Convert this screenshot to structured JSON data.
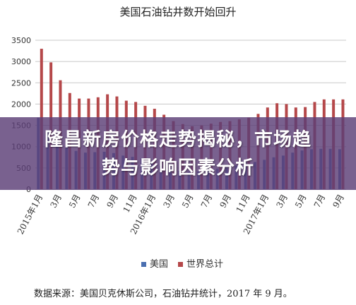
{
  "title": "美国石油钻井数开始回升",
  "banner": {
    "line1": "隆昌新房价格走势揭秘，市场趋",
    "line2": "势与影响因素分析"
  },
  "source": "数据来源：美国贝克休斯公司，石油钻井统计，2017 年 9 月。",
  "chart_data": {
    "type": "bar",
    "title": "美国石油钻井数开始回升",
    "xlabel": "",
    "ylabel": "",
    "ylim": [
      0,
      3500
    ],
    "yticks": [
      0,
      500,
      1000,
      1500,
      2000,
      2500,
      3000,
      3500
    ],
    "grid": true,
    "legend": "bottom",
    "tick_labels": [
      "2015年1月",
      "3月",
      "5月",
      "7月",
      "9月",
      "11月",
      "2016年1月",
      "3月",
      "5月",
      "7月",
      "9月",
      "11月",
      "2017年1月",
      "3月",
      "5月",
      "7月",
      "9月"
    ],
    "months": [
      "2015-01",
      "2015-02",
      "2015-03",
      "2015-04",
      "2015-05",
      "2015-06",
      "2015-07",
      "2015-08",
      "2015-09",
      "2015-10",
      "2015-11",
      "2015-12",
      "2016-01",
      "2016-02",
      "2016-03",
      "2016-04",
      "2016-05",
      "2016-06",
      "2016-07",
      "2016-08",
      "2016-09",
      "2016-10",
      "2016-11",
      "2016-12",
      "2017-01",
      "2017-02",
      "2017-03",
      "2017-04",
      "2017-05",
      "2017-06",
      "2017-07",
      "2017-08",
      "2017-09"
    ],
    "series": [
      {
        "name": "美国",
        "color": "#4a6fb0",
        "values": [
          1680,
          1350,
          1110,
          990,
          900,
          860,
          870,
          880,
          850,
          790,
          760,
          720,
          650,
          550,
          480,
          430,
          410,
          420,
          460,
          480,
          510,
          560,
          590,
          640,
          690,
          750,
          790,
          860,
          910,
          940,
          950,
          950,
          940
        ]
      },
      {
        "name": "世界总计",
        "color": "#b5484a",
        "values": [
          3300,
          2980,
          2560,
          2260,
          2130,
          2130,
          2160,
          2230,
          2180,
          2080,
          2050,
          1960,
          1890,
          1750,
          1600,
          1530,
          1480,
          1500,
          1540,
          1580,
          1600,
          1640,
          1680,
          1770,
          1920,
          2020,
          2000,
          1920,
          1930,
          2050,
          2110,
          2110,
          2110
        ]
      }
    ]
  }
}
